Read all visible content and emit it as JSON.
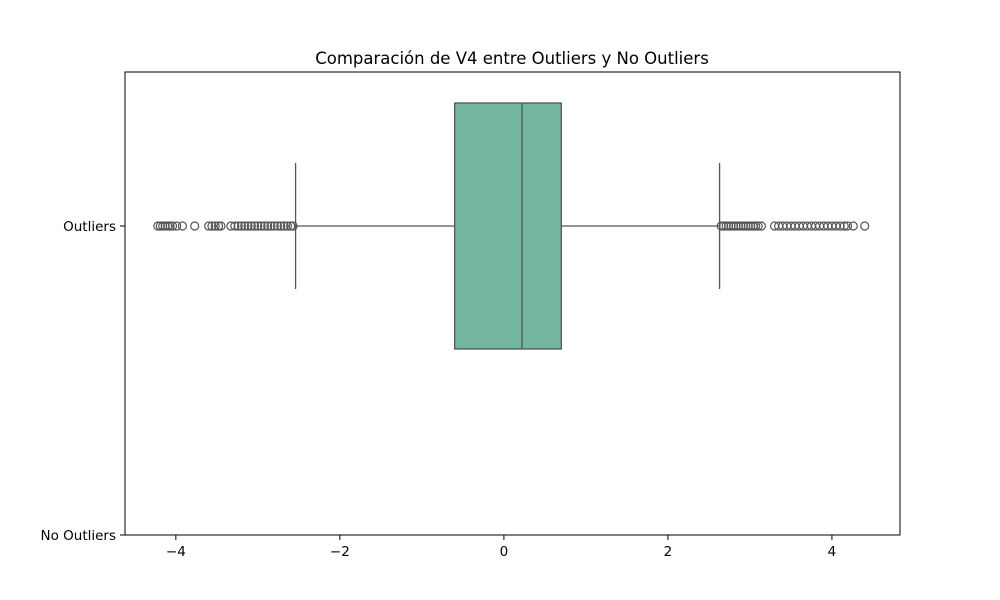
{
  "chart_data": {
    "type": "boxplot",
    "orientation": "horizontal",
    "title": "Comparación de V4 entre Outliers y No Outliers",
    "xlabel": "",
    "ylabel": "",
    "xlim": [
      -4.62,
      4.83
    ],
    "x_ticks": [
      -4,
      -2,
      0,
      2,
      4
    ],
    "x_tick_labels": [
      "−4",
      "−2",
      "0",
      "2",
      "4"
    ],
    "categories": [
      "Outliers",
      "No Outliers"
    ],
    "grid": false,
    "legend": "none",
    "box_color": "#72b6a1",
    "line_color": "#555555",
    "series": [
      {
        "category": "Outliers",
        "whisker_low": -2.54,
        "q1": -0.6,
        "median": 0.22,
        "q3": 0.7,
        "whisker_high": 2.63,
        "fliers": [
          -4.22,
          -4.19,
          -4.16,
          -4.13,
          -4.1,
          -4.07,
          -4.04,
          -3.99,
          -3.92,
          -3.77,
          -3.6,
          -3.56,
          -3.52,
          -3.48,
          -3.45,
          -3.33,
          -3.28,
          -3.24,
          -3.2,
          -3.16,
          -3.12,
          -3.08,
          -3.04,
          -3.0,
          -2.96,
          -2.92,
          -2.88,
          -2.84,
          -2.8,
          -2.76,
          -2.72,
          -2.68,
          -2.64,
          -2.6,
          -2.57,
          2.65,
          2.68,
          2.71,
          2.74,
          2.77,
          2.8,
          2.83,
          2.86,
          2.89,
          2.92,
          2.95,
          2.98,
          3.01,
          3.04,
          3.07,
          3.1,
          3.14,
          3.3,
          3.35,
          3.4,
          3.45,
          3.5,
          3.55,
          3.6,
          3.65,
          3.7,
          3.75,
          3.8,
          3.85,
          3.9,
          3.95,
          4.0,
          4.05,
          4.1,
          4.15,
          4.19,
          4.26,
          4.4
        ]
      },
      {
        "category": "No Outliers",
        "whisker_low": null,
        "q1": null,
        "median": null,
        "q3": null,
        "whisker_high": null,
        "fliers": []
      }
    ]
  }
}
